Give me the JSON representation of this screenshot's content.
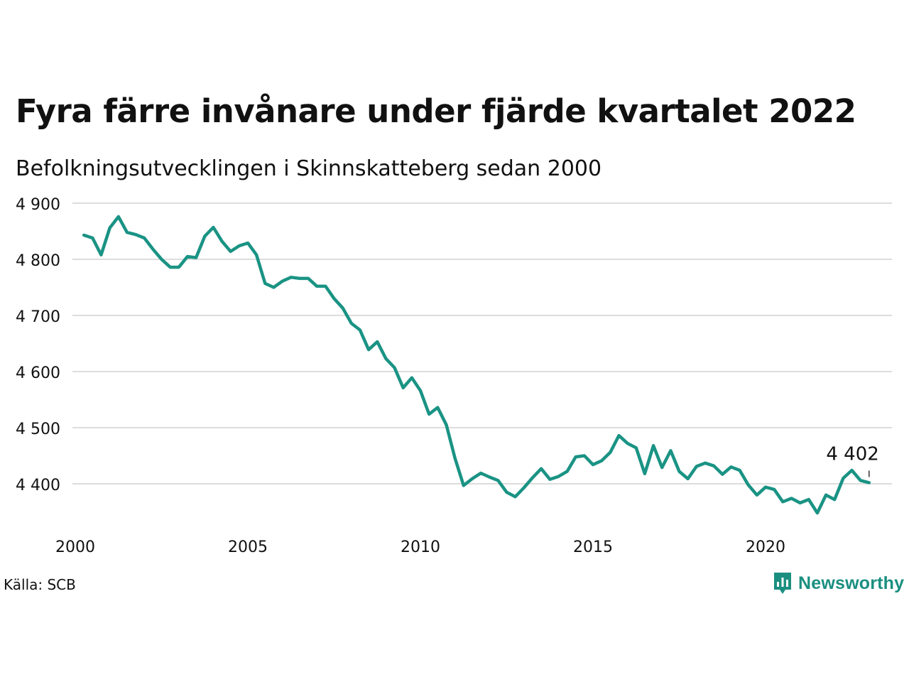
{
  "title": "Fyra färre invånare under fjärde kvartalet 2022",
  "subtitle": "Befolkningsutvecklingen i Skinnskatteberg sedan 2000",
  "source": "Källa: SCB",
  "brand": {
    "name": "Newsworthy",
    "logo_icon": "newsworthy-bar-chart-icon"
  },
  "colors": {
    "line": "#1a9384",
    "grid": "#dddddd",
    "brand": "#1a8f80"
  },
  "chart_data": {
    "type": "line",
    "x_unit": "quarter",
    "y_ticks": [
      4400,
      4500,
      4600,
      4700,
      4800,
      4900
    ],
    "y_tick_labels": [
      "4 400",
      "4 500",
      "4 600",
      "4 700",
      "4 800",
      "4 900"
    ],
    "x_ticks": [
      2000,
      2005,
      2010,
      2015,
      2020
    ],
    "x_tick_labels": [
      "2000",
      "2005",
      "2010",
      "2015",
      "2020"
    ],
    "xlim": [
      2000,
      2023.5
    ],
    "ylim": [
      4335,
      4900
    ],
    "grid": true,
    "last_value_label": "4 402",
    "series": [
      {
        "x": [
          2000.25,
          2000.5,
          2000.75,
          2001.0,
          2001.25,
          2001.5,
          2001.75,
          2002.0,
          2002.25,
          2002.5,
          2002.75,
          2003.0,
          2003.25,
          2003.5,
          2003.75,
          2004.0,
          2004.25,
          2004.5,
          2004.75,
          2005.0,
          2005.25,
          2005.5,
          2005.75,
          2006.0,
          2006.25,
          2006.5,
          2006.75,
          2007.0,
          2007.25,
          2007.5,
          2007.75,
          2008.0,
          2008.25,
          2008.5,
          2008.75,
          2009.0,
          2009.25,
          2009.5,
          2009.75,
          2010.0,
          2010.25,
          2010.5,
          2010.75,
          2011.0,
          2011.25,
          2011.5,
          2011.75,
          2012.0,
          2012.25,
          2012.5,
          2012.75,
          2013.0,
          2013.25,
          2013.5,
          2013.75,
          2014.0,
          2014.25,
          2014.5,
          2014.75,
          2015.0,
          2015.25,
          2015.5,
          2015.75,
          2016.0,
          2016.25,
          2016.5,
          2016.75,
          2017.0,
          2017.25,
          2017.5,
          2017.75,
          2018.0,
          2018.25,
          2018.5,
          2018.75,
          2019.0,
          2019.25,
          2019.5,
          2019.75,
          2020.0,
          2020.25,
          2020.5,
          2020.75,
          2021.0,
          2021.25,
          2021.5,
          2021.75,
          2022.0,
          2022.25,
          2022.5,
          2022.75,
          2023.0
        ],
        "values": [
          4843,
          4838,
          4808,
          4856,
          4876,
          4848,
          4844,
          4838,
          4818,
          4800,
          4786,
          4786,
          4805,
          4803,
          4841,
          4857,
          4832,
          4814,
          4824,
          4829,
          4808,
          4757,
          4750,
          4761,
          4768,
          4766,
          4766,
          4752,
          4752,
          4730,
          4713,
          4686,
          4674,
          4639,
          4653,
          4623,
          4607,
          4571,
          4589,
          4566,
          4524,
          4536,
          4505,
          4446,
          4397,
          4409,
          4419,
          4412,
          4406,
          4385,
          4377,
          4393,
          4411,
          4427,
          4408,
          4413,
          4422,
          4448,
          4450,
          4434,
          4441,
          4456,
          4486,
          4472,
          4464,
          4418,
          4468,
          4429,
          4459,
          4422,
          4409,
          4431,
          4437,
          4432,
          4417,
          4430,
          4424,
          4398,
          4380,
          4394,
          4390,
          4368,
          4374,
          4366,
          4372,
          4348,
          4380,
          4372,
          4410,
          4424,
          4406,
          4402
        ]
      }
    ]
  }
}
